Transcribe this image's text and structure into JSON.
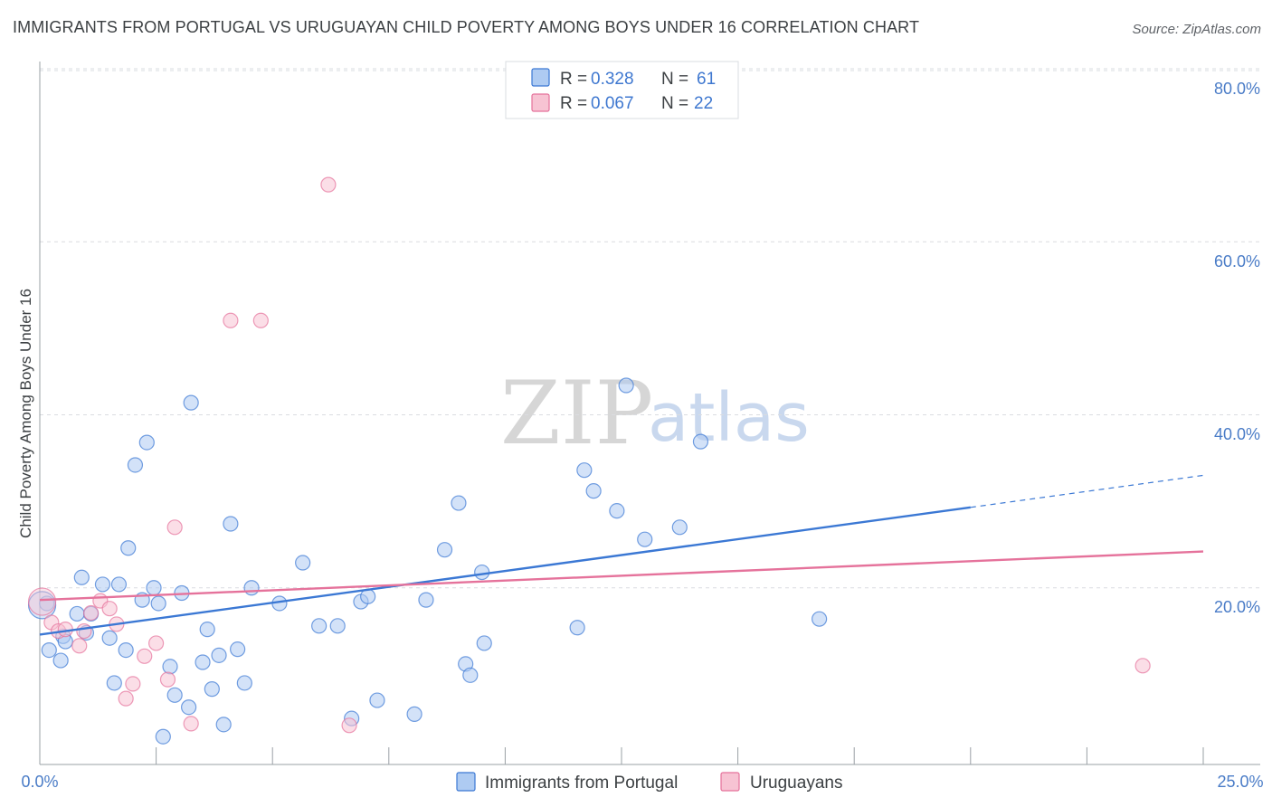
{
  "header": {
    "title": "IMMIGRANTS FROM PORTUGAL VS URUGUAYAN CHILD POVERTY AMONG BOYS UNDER 16 CORRELATION CHART",
    "source": "Source: ZipAtlas.com"
  },
  "watermark": {
    "zip": "ZIP",
    "atlas": "atlas"
  },
  "colors": {
    "blue": "#3b78d4",
    "blue_fill": "#aecbf2",
    "pink": "#e5729b",
    "pink_fill": "#f7c3d3",
    "grid": "#dadce0",
    "tick_text": "#4a7cc7"
  },
  "legend": {
    "rows": [
      {
        "r_label": "R =",
        "r_value": "0.328",
        "n_label": "N =",
        "n_value": "61",
        "series": "blue"
      },
      {
        "r_label": "R =",
        "r_value": "0.067",
        "n_label": "N =",
        "n_value": "22",
        "series": "pink"
      }
    ]
  },
  "bottom_legend": [
    "Immigrants from Portugal",
    "Uruguayans"
  ],
  "chart_data": {
    "type": "scatter",
    "ylabel": "Child Poverty Among Boys Under 16",
    "xlabel": "",
    "xlim": [
      0,
      25
    ],
    "ylim": [
      0,
      80
    ],
    "x_tick_labels": [
      "0.0%",
      "25.0%"
    ],
    "y_ticks": [
      20,
      40,
      60,
      80
    ],
    "y_tick_labels": [
      "20.0%",
      "40.0%",
      "60.0%",
      "80.0%"
    ],
    "grid": true,
    "legend_position": "top-center",
    "series": [
      {
        "name": "Immigrants from Portugal",
        "color": "blue",
        "trend": {
          "x0": 0,
          "y0": 14.6,
          "x1": 20,
          "y1": 29.3,
          "x_dashed_end": 25,
          "y_dashed_end": 33.0
        },
        "points": [
          [
            0.15,
            18.2
          ],
          [
            0.2,
            12.8
          ],
          [
            0.45,
            11.6
          ],
          [
            0.5,
            14.4
          ],
          [
            0.55,
            13.8
          ],
          [
            0.8,
            17.0
          ],
          [
            0.9,
            21.2
          ],
          [
            1.0,
            14.8
          ],
          [
            1.1,
            17.0
          ],
          [
            1.35,
            20.4
          ],
          [
            1.5,
            14.2
          ],
          [
            1.6,
            9.0
          ],
          [
            1.7,
            20.4
          ],
          [
            1.85,
            12.8
          ],
          [
            1.9,
            24.6
          ],
          [
            2.05,
            34.2
          ],
          [
            2.2,
            18.6
          ],
          [
            2.3,
            36.8
          ],
          [
            2.45,
            20.0
          ],
          [
            2.55,
            18.2
          ],
          [
            2.65,
            2.8
          ],
          [
            2.8,
            10.9
          ],
          [
            2.9,
            7.6
          ],
          [
            3.05,
            19.4
          ],
          [
            3.2,
            6.2
          ],
          [
            3.25,
            41.4
          ],
          [
            3.5,
            11.4
          ],
          [
            3.6,
            15.2
          ],
          [
            3.7,
            8.3
          ],
          [
            3.85,
            12.2
          ],
          [
            3.95,
            4.2
          ],
          [
            4.1,
            27.4
          ],
          [
            4.25,
            12.9
          ],
          [
            4.4,
            9.0
          ],
          [
            4.55,
            20.0
          ],
          [
            5.15,
            18.2
          ],
          [
            5.65,
            22.9
          ],
          [
            6.0,
            15.6
          ],
          [
            6.4,
            15.6
          ],
          [
            6.7,
            4.9
          ],
          [
            6.9,
            18.4
          ],
          [
            7.05,
            19.0
          ],
          [
            7.25,
            7.0
          ],
          [
            8.05,
            5.4
          ],
          [
            8.3,
            18.6
          ],
          [
            8.7,
            24.4
          ],
          [
            9.0,
            29.8
          ],
          [
            9.15,
            11.2
          ],
          [
            9.25,
            9.9
          ],
          [
            9.55,
            13.6
          ],
          [
            9.5,
            21.8
          ],
          [
            11.55,
            15.4
          ],
          [
            11.7,
            33.6
          ],
          [
            11.9,
            31.2
          ],
          [
            12.4,
            28.9
          ],
          [
            12.6,
            43.4
          ],
          [
            13.0,
            25.6
          ],
          [
            13.75,
            27.0
          ],
          [
            14.2,
            36.9
          ],
          [
            16.75,
            16.4
          ],
          [
            0.05,
            18.0
          ]
        ]
      },
      {
        "name": "Uruguayans",
        "color": "pink",
        "trend": {
          "x0": 0,
          "y0": 18.6,
          "x1": 25,
          "y1": 24.2
        },
        "points": [
          [
            0.05,
            18.4
          ],
          [
            0.25,
            16.0
          ],
          [
            0.4,
            15.0
          ],
          [
            0.55,
            15.2
          ],
          [
            0.85,
            13.3
          ],
          [
            0.95,
            15.0
          ],
          [
            1.1,
            17.1
          ],
          [
            1.3,
            18.5
          ],
          [
            1.5,
            17.6
          ],
          [
            1.65,
            15.8
          ],
          [
            1.85,
            7.2
          ],
          [
            2.0,
            8.9
          ],
          [
            2.25,
            12.1
          ],
          [
            2.5,
            13.6
          ],
          [
            2.75,
            9.4
          ],
          [
            2.9,
            27.0
          ],
          [
            3.25,
            4.3
          ],
          [
            4.1,
            50.9
          ],
          [
            4.75,
            50.9
          ],
          [
            6.2,
            66.6
          ],
          [
            6.65,
            4.1
          ],
          [
            23.7,
            11.0
          ]
        ]
      }
    ]
  }
}
